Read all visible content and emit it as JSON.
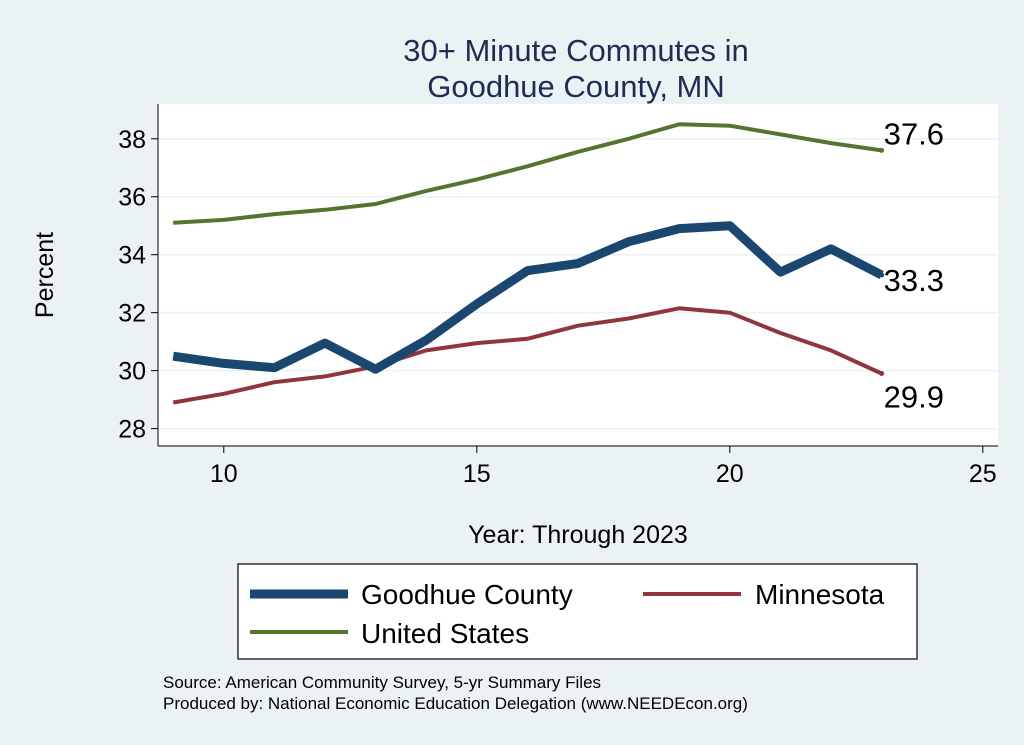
{
  "chart_data": {
    "type": "line",
    "title": [
      "30+ Minute Commutes in",
      "Goodhue County, MN"
    ],
    "xlabel": "Year: Through 2023",
    "ylabel": "Percent",
    "xlim": [
      8.7,
      25.3
    ],
    "ylim": [
      27.4,
      39.2
    ],
    "xticks": [
      10,
      15,
      20,
      25
    ],
    "yticks": [
      28,
      30,
      32,
      34,
      36,
      38
    ],
    "grid": true,
    "x": [
      9,
      10,
      11,
      12,
      13,
      14,
      15,
      16,
      17,
      18,
      19,
      20,
      21,
      22,
      23
    ],
    "series": [
      {
        "name": "Goodhue County",
        "color": "#1a476f",
        "width": 9,
        "values": [
          30.5,
          30.25,
          30.1,
          30.95,
          30.05,
          31.05,
          32.3,
          33.45,
          33.7,
          34.45,
          34.9,
          35.0,
          33.4,
          34.2,
          33.3
        ],
        "end_label": "33.3"
      },
      {
        "name": "Minnesota",
        "color": "#90353b",
        "width": 4,
        "values": [
          28.9,
          29.2,
          29.6,
          29.8,
          30.15,
          30.7,
          30.95,
          31.1,
          31.55,
          31.8,
          32.15,
          32.0,
          31.3,
          30.7,
          29.9
        ],
        "end_label": "29.9"
      },
      {
        "name": "United States",
        "color": "#55752f",
        "width": 4,
        "values": [
          35.1,
          35.2,
          35.4,
          35.55,
          35.75,
          36.2,
          36.6,
          37.05,
          37.55,
          38.0,
          38.5,
          38.45,
          38.15,
          37.85,
          37.6
        ],
        "end_label": "37.6"
      }
    ],
    "legend_position": "bottom",
    "notes": [
      "Source: American Community Survey, 5-yr Summary Files",
      "Produced by: National Economic Education Delegation (www.NEEDEcon.org)"
    ]
  }
}
